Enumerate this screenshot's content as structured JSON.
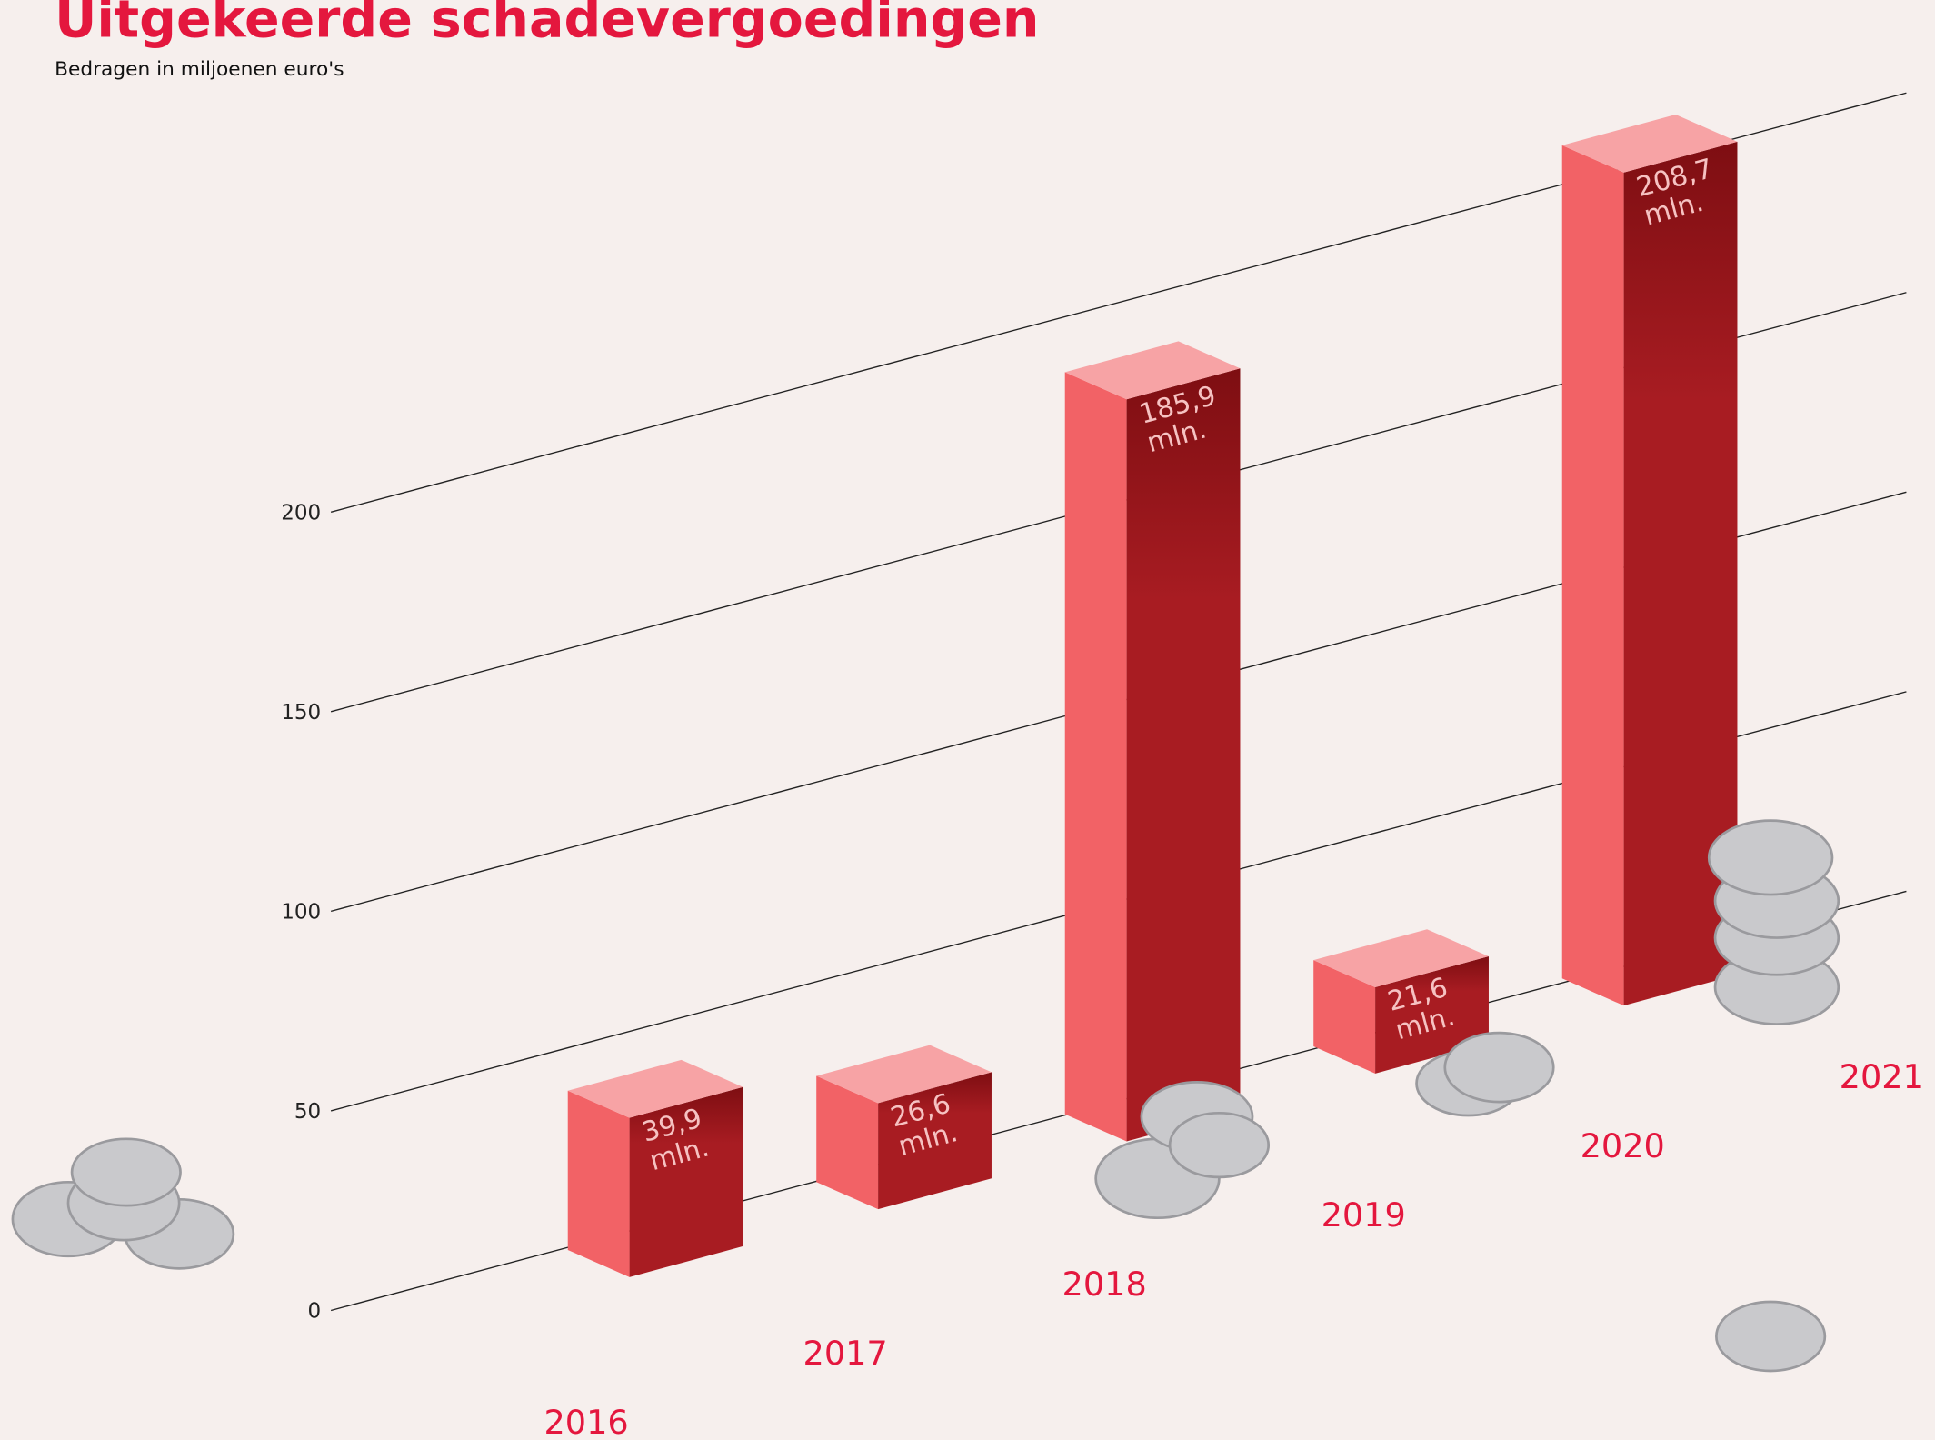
{
  "chart_data": {
    "type": "bar3d",
    "title": "Uitgekeerde schadevergoedingen",
    "subtitle": "Bedragen in miljoenen euro's",
    "categories": [
      "2016",
      "2017",
      "2018",
      "2019",
      "2020",
      "2021"
    ],
    "values": [
      39.9,
      26.6,
      185.9,
      21.6,
      208.7,
      null
    ],
    "value_labels": [
      "39,9 mln.",
      "26,6 mln.",
      "185,9 mln.",
      "21,6 mln.",
      "208,7 mln.",
      null
    ],
    "color": "#a81c22",
    "ylim": [
      0,
      250
    ],
    "yticks": [
      0,
      50,
      100,
      150,
      200
    ],
    "grid": true
  }
}
